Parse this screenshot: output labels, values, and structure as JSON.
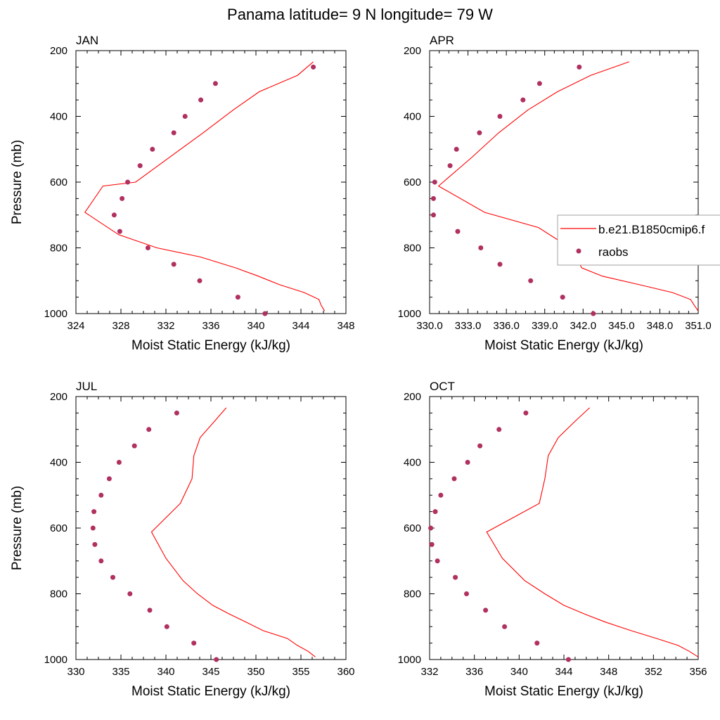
{
  "title": "Panama  latitude= 9 N longitude= 79 W",
  "colors": {
    "model": "#ff0000",
    "obs": "#b03060",
    "axis": "#000000",
    "legend_border": "#a0a0a0"
  },
  "legend": {
    "items": [
      {
        "label": "b.e21.B1850cmip6.f",
        "type": "line"
      },
      {
        "label": "raobs",
        "type": "marker"
      }
    ],
    "placement": "right of APR panel"
  },
  "chart_data": [
    {
      "type": "line",
      "panel": "JAN",
      "xlabel": "Moist Static Energy (kJ/kg)",
      "ylabel": "Pressure (mb)",
      "xlim": [
        324,
        348
      ],
      "ylim": [
        200,
        1000
      ],
      "y_reversed": true,
      "xticks": [
        324,
        328,
        332,
        336,
        340,
        344,
        348
      ],
      "xtick_labels": [
        "324",
        "328",
        "332",
        "336",
        "340",
        "344",
        "348"
      ],
      "yticks": [
        200,
        400,
        600,
        800,
        1000
      ],
      "series": [
        {
          "name": "b.e21.B1850cmip6.f",
          "kind": "line",
          "points": [
            [
              345.1,
              234
            ],
            [
              343.7,
              275
            ],
            [
              340.3,
              325
            ],
            [
              338.0,
              380
            ],
            [
              335.3,
              450
            ],
            [
              332.3,
              525
            ],
            [
              329.3,
              600
            ],
            [
              326.4,
              612
            ],
            [
              324.8,
              692
            ],
            [
              327.8,
              760
            ],
            [
              331.2,
              800
            ],
            [
              335.1,
              828
            ],
            [
              338.2,
              861
            ],
            [
              340.2,
              886
            ],
            [
              342.1,
              912
            ],
            [
              344.3,
              936
            ],
            [
              345.6,
              957
            ],
            [
              345.8,
              975
            ],
            [
              346.1,
              992
            ]
          ]
        },
        {
          "name": "raobs",
          "kind": "scatter",
          "points": [
            [
              345.1,
              250
            ],
            [
              336.4,
              300
            ],
            [
              335.1,
              350
            ],
            [
              333.7,
              400
            ],
            [
              332.7,
              450
            ],
            [
              330.8,
              500
            ],
            [
              329.7,
              550
            ],
            [
              328.6,
              600
            ],
            [
              328.1,
              650
            ],
            [
              327.4,
              700
            ],
            [
              327.9,
              750
            ],
            [
              330.4,
              800
            ],
            [
              332.7,
              850
            ],
            [
              335.0,
              900
            ],
            [
              338.4,
              950
            ],
            [
              340.8,
              1000
            ]
          ]
        }
      ]
    },
    {
      "type": "line",
      "panel": "APR",
      "xlabel": "Moist Static Energy (kJ/kg)",
      "ylabel": "",
      "xlim": [
        330.0,
        351.0
      ],
      "ylim": [
        200,
        1000
      ],
      "y_reversed": true,
      "xticks": [
        330,
        333,
        336,
        339,
        342,
        345,
        348,
        351
      ],
      "xtick_labels": [
        "330.0",
        "333.0",
        "336.0",
        "339.0",
        "342.0",
        "345.0",
        "348.0",
        "351.0"
      ],
      "yticks": [
        200,
        400,
        600,
        800,
        1000
      ],
      "series": [
        {
          "name": "b.e21.B1850cmip6.f",
          "kind": "line",
          "points": [
            [
              345.6,
              234
            ],
            [
              342.6,
              275
            ],
            [
              340.0,
              325
            ],
            [
              337.7,
              380
            ],
            [
              335.4,
              450
            ],
            [
              333.3,
              525
            ],
            [
              330.7,
              612
            ],
            [
              334.3,
              692
            ],
            [
              338.5,
              738
            ],
            [
              341.0,
              800
            ],
            [
              341.9,
              861
            ],
            [
              343.5,
              886
            ],
            [
              346.4,
              912
            ],
            [
              349.0,
              936
            ],
            [
              350.4,
              957
            ],
            [
              350.7,
              975
            ],
            [
              351.0,
              992
            ]
          ]
        },
        {
          "name": "raobs",
          "kind": "scatter",
          "points": [
            [
              341.7,
              250
            ],
            [
              338.6,
              300
            ],
            [
              337.3,
              350
            ],
            [
              335.5,
              400
            ],
            [
              333.9,
              450
            ],
            [
              332.1,
              500
            ],
            [
              331.6,
              550
            ],
            [
              330.4,
              600
            ],
            [
              330.3,
              650
            ],
            [
              330.3,
              700
            ],
            [
              332.2,
              750
            ],
            [
              334.0,
              800
            ],
            [
              335.5,
              850
            ],
            [
              337.9,
              900
            ],
            [
              340.4,
              950
            ],
            [
              342.8,
              1000
            ]
          ]
        }
      ]
    },
    {
      "type": "line",
      "panel": "JUL",
      "xlabel": "Moist Static Energy (kJ/kg)",
      "ylabel": "Pressure (mb)",
      "xlim": [
        330,
        360
      ],
      "ylim": [
        200,
        1000
      ],
      "y_reversed": true,
      "xticks": [
        330,
        335,
        340,
        345,
        350,
        355,
        360
      ],
      "xtick_labels": [
        "330",
        "335",
        "340",
        "345",
        "350",
        "355",
        "360"
      ],
      "yticks": [
        200,
        400,
        600,
        800,
        1000
      ],
      "series": [
        {
          "name": "b.e21.B1850cmip6.f",
          "kind": "line",
          "points": [
            [
              346.7,
              234
            ],
            [
              345.4,
              275
            ],
            [
              343.8,
              325
            ],
            [
              343.1,
              380
            ],
            [
              342.9,
              450
            ],
            [
              341.6,
              525
            ],
            [
              338.4,
              612
            ],
            [
              340.0,
              692
            ],
            [
              341.9,
              760
            ],
            [
              343.5,
              800
            ],
            [
              345.2,
              835
            ],
            [
              347.0,
              861
            ],
            [
              348.9,
              886
            ],
            [
              350.8,
              912
            ],
            [
              353.5,
              936
            ],
            [
              354.6,
              957
            ],
            [
              355.8,
              975
            ],
            [
              356.6,
              992
            ]
          ]
        },
        {
          "name": "raobs",
          "kind": "scatter",
          "points": [
            [
              341.2,
              250
            ],
            [
              338.1,
              300
            ],
            [
              336.5,
              350
            ],
            [
              334.8,
              400
            ],
            [
              333.7,
              450
            ],
            [
              332.8,
              500
            ],
            [
              332.0,
              550
            ],
            [
              331.9,
              600
            ],
            [
              332.1,
              650
            ],
            [
              332.8,
              700
            ],
            [
              334.1,
              750
            ],
            [
              336.0,
              800
            ],
            [
              338.2,
              850
            ],
            [
              340.1,
              900
            ],
            [
              343.1,
              950
            ],
            [
              345.6,
              1000
            ]
          ]
        }
      ]
    },
    {
      "type": "line",
      "panel": "OCT",
      "xlabel": "Moist Static Energy (kJ/kg)",
      "ylabel": "",
      "xlim": [
        332,
        356
      ],
      "ylim": [
        200,
        1000
      ],
      "y_reversed": true,
      "xticks": [
        332,
        336,
        340,
        344,
        348,
        352,
        356
      ],
      "xtick_labels": [
        "332",
        "336",
        "340",
        "344",
        "348",
        "352",
        "356"
      ],
      "yticks": [
        200,
        400,
        600,
        800,
        1000
      ],
      "series": [
        {
          "name": "b.e21.B1850cmip6.f",
          "kind": "line",
          "points": [
            [
              346.3,
              234
            ],
            [
              345.0,
              275
            ],
            [
              343.5,
              325
            ],
            [
              342.6,
              380
            ],
            [
              342.3,
              450
            ],
            [
              341.8,
              525
            ],
            [
              337.1,
              612
            ],
            [
              338.5,
              692
            ],
            [
              340.5,
              760
            ],
            [
              342.3,
              800
            ],
            [
              344.0,
              835
            ],
            [
              345.8,
              861
            ],
            [
              347.7,
              886
            ],
            [
              350.0,
              912
            ],
            [
              352.3,
              936
            ],
            [
              354.2,
              957
            ],
            [
              355.2,
              975
            ],
            [
              356.0,
              992
            ]
          ]
        },
        {
          "name": "raobs",
          "kind": "scatter",
          "points": [
            [
              340.6,
              250
            ],
            [
              338.2,
              300
            ],
            [
              336.5,
              350
            ],
            [
              335.4,
              400
            ],
            [
              334.2,
              450
            ],
            [
              333.0,
              500
            ],
            [
              332.5,
              550
            ],
            [
              332.1,
              600
            ],
            [
              332.2,
              650
            ],
            [
              332.7,
              700
            ],
            [
              334.3,
              750
            ],
            [
              335.3,
              800
            ],
            [
              337.0,
              850
            ],
            [
              338.7,
              900
            ],
            [
              341.6,
              950
            ],
            [
              344.4,
              1000
            ]
          ]
        }
      ]
    }
  ]
}
